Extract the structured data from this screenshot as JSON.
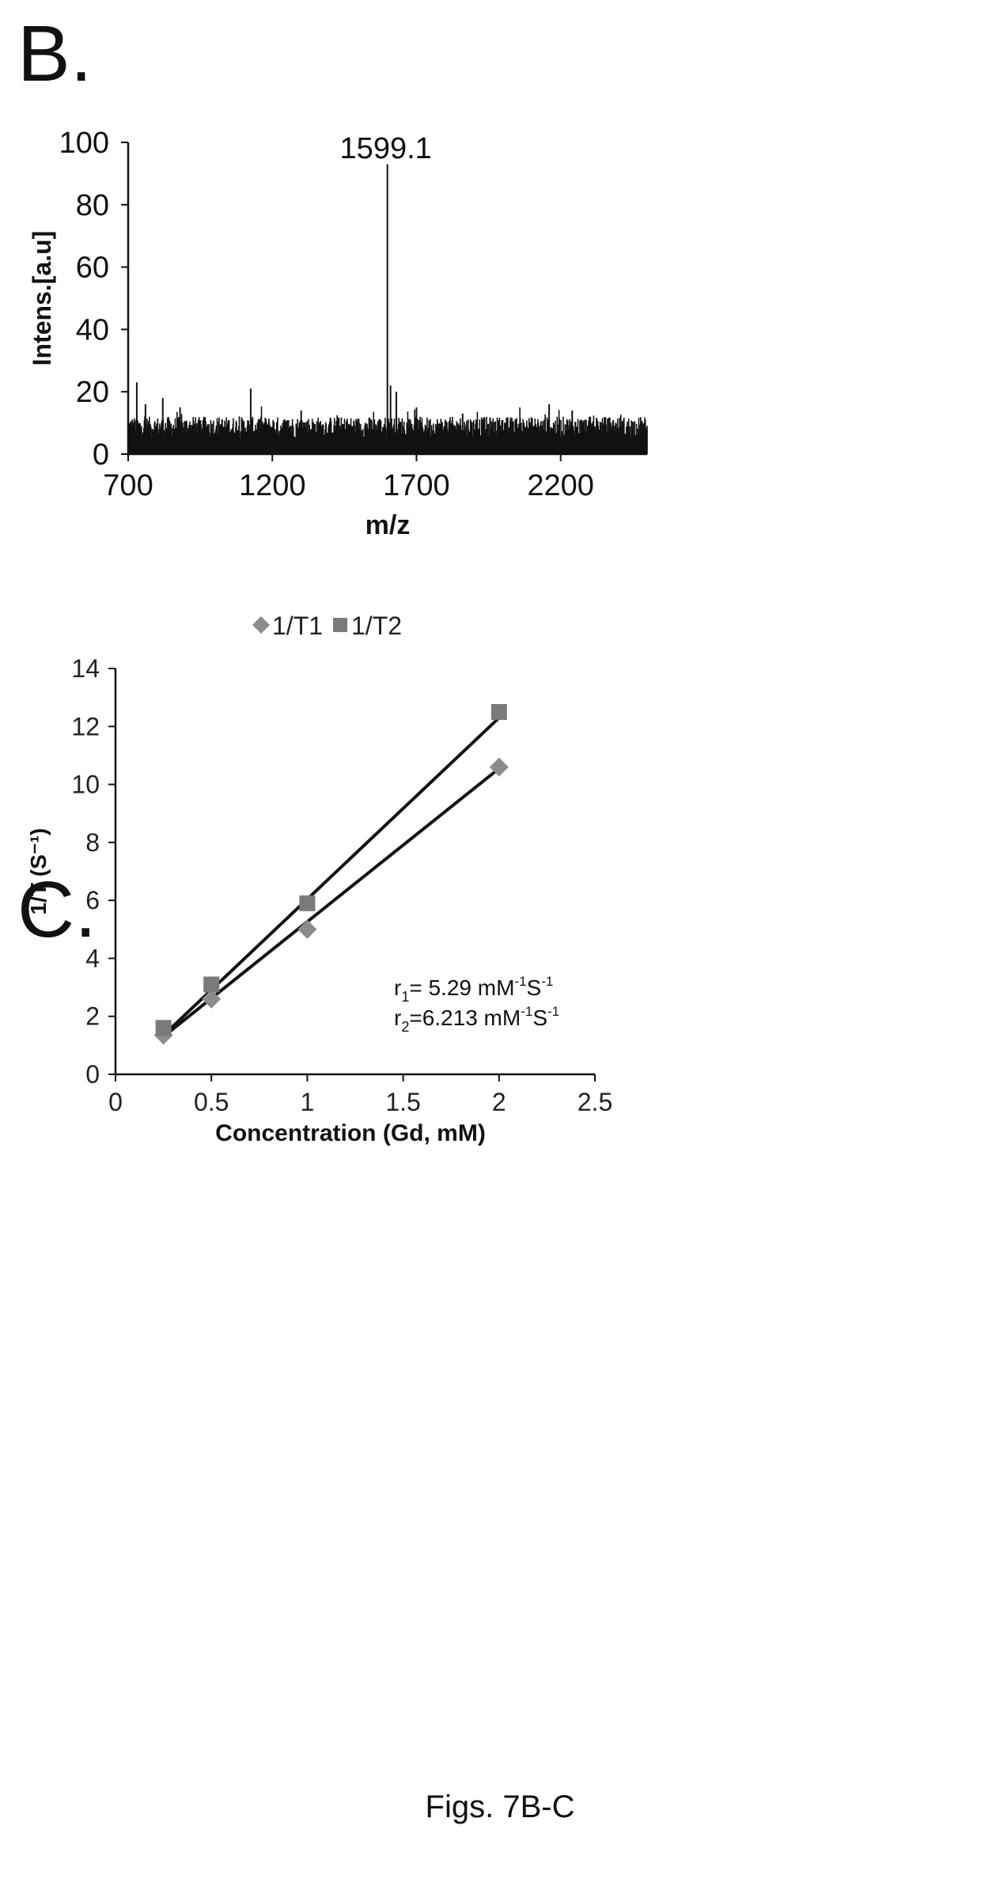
{
  "panels": {
    "b_label": "B.",
    "c_label": "C."
  },
  "caption": "Figs. 7B-C",
  "chart_data": [
    {
      "type": "line",
      "subtype": "mass-spectrum",
      "xlabel": "m/z",
      "ylabel": "Intens.[a.u]",
      "xlim": [
        700,
        2500
      ],
      "ylim": [
        0,
        100
      ],
      "xticks": [
        700,
        1200,
        1700,
        2200
      ],
      "yticks": [
        0,
        20,
        40,
        60,
        80,
        100
      ],
      "peak_label": "1599.1",
      "peaks": [
        {
          "x": 700,
          "y": 16
        },
        {
          "x": 730,
          "y": 23
        },
        {
          "x": 760,
          "y": 16
        },
        {
          "x": 820,
          "y": 18
        },
        {
          "x": 880,
          "y": 15
        },
        {
          "x": 1125,
          "y": 21
        },
        {
          "x": 1300,
          "y": 14
        },
        {
          "x": 1599.1,
          "y": 93
        },
        {
          "x": 1610,
          "y": 22
        },
        {
          "x": 1630,
          "y": 20
        },
        {
          "x": 1700,
          "y": 15
        },
        {
          "x": 1860,
          "y": 13
        },
        {
          "x": 2160,
          "y": 16
        },
        {
          "x": 2240,
          "y": 14
        },
        {
          "x": 2300,
          "y": 12
        }
      ],
      "noise_level": [
        5,
        12
      ],
      "grid": false
    },
    {
      "type": "scatter",
      "xlabel": "Concentration (Gd, mM)",
      "ylabel": "1/T (S⁻¹)",
      "xlim": [
        0,
        2.5
      ],
      "ylim": [
        0,
        14
      ],
      "xticks": [
        "0",
        "0.5",
        "1",
        "1.5",
        "2",
        "2.5"
      ],
      "yticks": [
        "0",
        "2",
        "4",
        "6",
        "8",
        "10",
        "12",
        "14"
      ],
      "legend_position": "top-center",
      "grid": false,
      "series": [
        {
          "name": "1/T1",
          "marker": "diamond",
          "color": "#8c8c8c",
          "x": [
            0.25,
            0.5,
            1,
            2
          ],
          "y": [
            1.35,
            2.6,
            5.0,
            10.6
          ],
          "fit_line": {
            "x": [
              0.25,
              2
            ],
            "y": [
              1.3,
              10.55
            ]
          }
        },
        {
          "name": "1/T2",
          "marker": "square",
          "color": "#7a7a7a",
          "x": [
            0.25,
            0.5,
            1,
            2
          ],
          "y": [
            1.6,
            3.1,
            5.9,
            12.5
          ],
          "fit_line": {
            "x": [
              0.25,
              2
            ],
            "y": [
              1.35,
              12.3
            ]
          }
        }
      ],
      "annotations": [
        {
          "base": "r",
          "sub": "1",
          "text": "= 5.29 mM",
          "sup1": "-1",
          "mid": "S",
          "sup2": "-1"
        },
        {
          "base": "r",
          "sub": "2",
          "text": "=6.213 mM",
          "sup1": "-1",
          "mid": "S",
          "sup2": "-1"
        }
      ]
    }
  ]
}
